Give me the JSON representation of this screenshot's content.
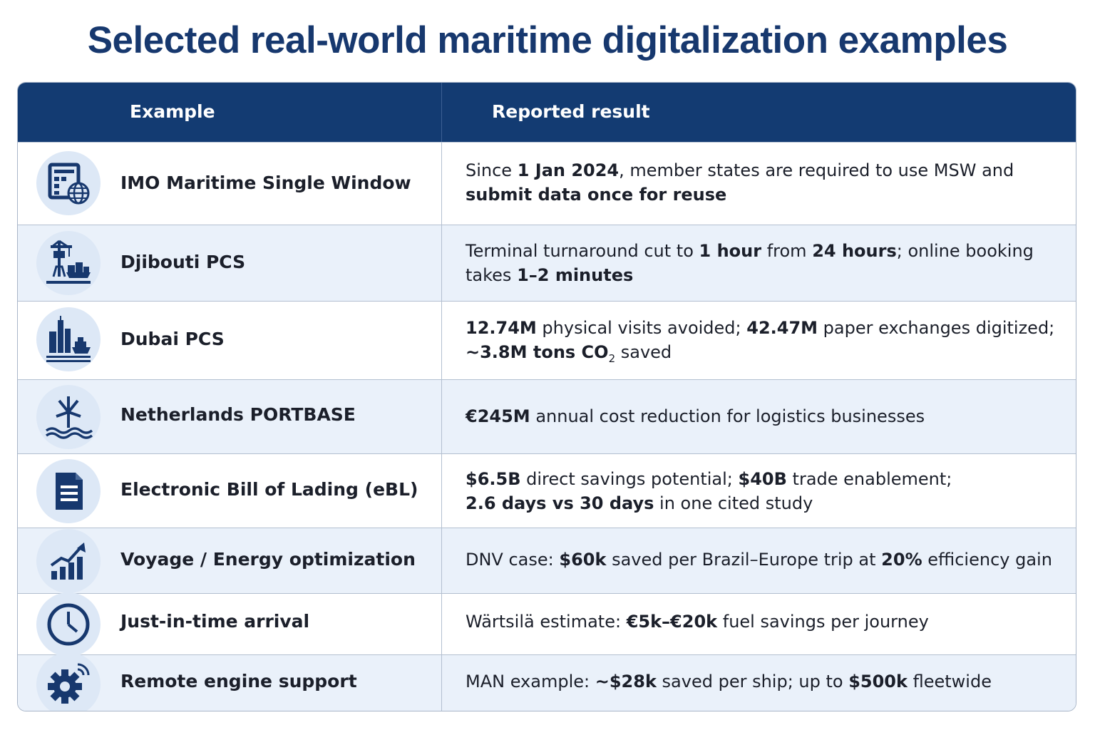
{
  "title": "Selected real-world maritime digitalization examples",
  "header": {
    "col1": "Example",
    "col2": "Reported result"
  },
  "rows": [
    {
      "name": "IMO Maritime Single Window",
      "icon": "window-globe-icon",
      "l1a": "Since ",
      "l1b": "1 Jan 2024",
      "l1c": ", member states are required to use MSW and",
      "l2a": "submit data once for reuse"
    },
    {
      "name": "Djibouti PCS",
      "icon": "port-crane-icon",
      "l1a": "Terminal turnaround cut to ",
      "l1b": "1 hour",
      "l1c": " from ",
      "l1d": "24 hours",
      "l1e": "; online booking",
      "l2a": "takes ",
      "l2b": "1–2 minutes"
    },
    {
      "name": "Dubai PCS",
      "icon": "city-ship-icon",
      "l1a": "12.74M",
      "l1b": " physical visits avoided; ",
      "l1c": "42.47M",
      "l1d": " paper exchanges digitized;",
      "l2a": "~3.8M tons CO",
      "l2sub": "2",
      "l2b": " saved"
    },
    {
      "name": "Netherlands PORTBASE",
      "icon": "windmill-waves-icon",
      "l1a": "€245M",
      "l1b": " annual cost reduction for logistics businesses"
    },
    {
      "name": "Electronic Bill of Lading (eBL)",
      "icon": "document-icon",
      "l1a": "$6.5B",
      "l1b": " direct savings potential; ",
      "l1c": "$40B",
      "l1d": " trade enablement;",
      "l2a": "2.6 days vs 30 days",
      "l2b": " in one cited study"
    },
    {
      "name": "Voyage / Energy optimization",
      "icon": "growth-chart-icon",
      "l1a": "DNV case: ",
      "l1b": "$60k",
      "l1c": " saved per Brazil–Europe trip at ",
      "l1d": "20%",
      "l1e": " efficiency gain"
    },
    {
      "name": "Just-in-time arrival",
      "icon": "clock-icon",
      "l1a": "Wärtsilä estimate: ",
      "l1b": "€5k–€20k",
      "l1c": " fuel savings per journey"
    },
    {
      "name": "Remote engine support",
      "icon": "gear-signal-icon",
      "l1a": "MAN example: ",
      "l1b": "~$28k",
      "l1c": " saved per ship; up to ",
      "l1d": "$500k",
      "l1e": " fleetwide"
    }
  ],
  "colors": {
    "navy": "#133b72",
    "title": "#17386e",
    "alt_row": "#eaf1fa",
    "icon_bg": "#dde8f6"
  }
}
